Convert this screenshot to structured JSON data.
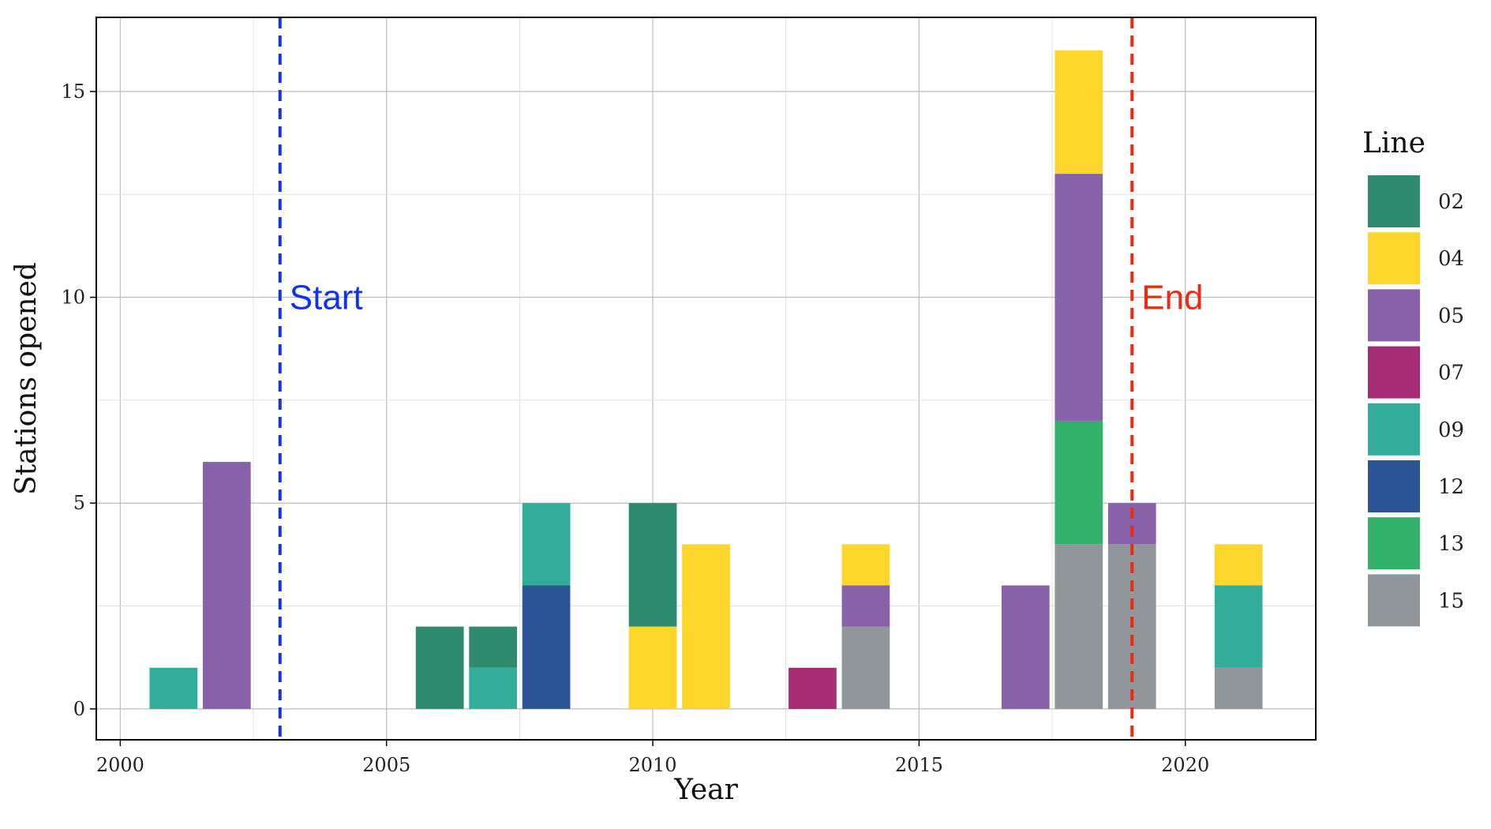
{
  "chart_data": {
    "type": "bar",
    "stacked": true,
    "xlabel": "Year",
    "ylabel": "Stations opened",
    "xlim": [
      1999.55,
      2022.45
    ],
    "ylim": [
      -0.75,
      16.8
    ],
    "xticks": [
      2000,
      2005,
      2010,
      2015,
      2020
    ],
    "yticks": [
      0,
      5,
      10,
      15
    ],
    "grid": true,
    "legend": {
      "title": "Line",
      "position": "right"
    },
    "series": [
      {
        "name": "02",
        "color": "#2e8b6f"
      },
      {
        "name": "04",
        "color": "#fcd52d"
      },
      {
        "name": "05",
        "color": "#8862a8"
      },
      {
        "name": "07",
        "color": "#a52b73"
      },
      {
        "name": "09",
        "color": "#31ad99"
      },
      {
        "name": "12",
        "color": "#2c5595"
      },
      {
        "name": "13",
        "color": "#33b06a"
      },
      {
        "name": "15",
        "color": "#909699"
      }
    ],
    "bars": [
      {
        "year": 2001,
        "segments": [
          {
            "line": "09",
            "value": 1
          }
        ]
      },
      {
        "year": 2002,
        "segments": [
          {
            "line": "05",
            "value": 6
          }
        ]
      },
      {
        "year": 2006,
        "segments": [
          {
            "line": "02",
            "value": 2
          }
        ]
      },
      {
        "year": 2007,
        "segments": [
          {
            "line": "09",
            "value": 1
          },
          {
            "line": "02",
            "value": 1
          }
        ]
      },
      {
        "year": 2008,
        "segments": [
          {
            "line": "12",
            "value": 3
          },
          {
            "line": "09",
            "value": 2
          }
        ]
      },
      {
        "year": 2010,
        "segments": [
          {
            "line": "04",
            "value": 2
          },
          {
            "line": "02",
            "value": 3
          }
        ]
      },
      {
        "year": 2011,
        "segments": [
          {
            "line": "04",
            "value": 4
          }
        ]
      },
      {
        "year": 2013,
        "segments": [
          {
            "line": "07",
            "value": 1
          }
        ]
      },
      {
        "year": 2014,
        "segments": [
          {
            "line": "15",
            "value": 2
          },
          {
            "line": "05",
            "value": 1
          },
          {
            "line": "04",
            "value": 1
          }
        ]
      },
      {
        "year": 2017,
        "segments": [
          {
            "line": "05",
            "value": 3
          }
        ]
      },
      {
        "year": 2018,
        "segments": [
          {
            "line": "15",
            "value": 4
          },
          {
            "line": "13",
            "value": 3
          },
          {
            "line": "05",
            "value": 6
          },
          {
            "line": "04",
            "value": 3
          }
        ]
      },
      {
        "year": 2019,
        "segments": [
          {
            "line": "15",
            "value": 4
          },
          {
            "line": "05",
            "value": 1
          }
        ]
      },
      {
        "year": 2021,
        "segments": [
          {
            "line": "15",
            "value": 1
          },
          {
            "line": "09",
            "value": 2
          },
          {
            "line": "04",
            "value": 1
          }
        ]
      }
    ],
    "vlines": [
      {
        "x": 2003,
        "color": "#1133ee",
        "label": "Start",
        "label_y": 10
      },
      {
        "x": 2019,
        "color": "#ee2a11",
        "label": "End",
        "label_y": 10
      }
    ]
  }
}
